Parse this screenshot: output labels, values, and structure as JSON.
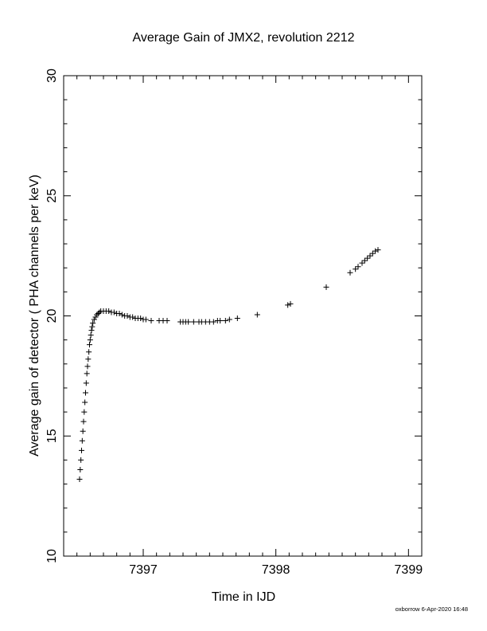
{
  "chart_data": {
    "type": "scatter",
    "title": "Average Gain of JMX2, revolution 2212",
    "xlabel": "Time in IJD",
    "ylabel": "Average gain of detector ( PHA channels per keV)",
    "xlim": [
      7396.4,
      7399.1
    ],
    "ylim": [
      10,
      30
    ],
    "xticks": [
      7397,
      7398,
      7399
    ],
    "yticks": [
      10,
      15,
      20,
      25,
      30
    ],
    "xtick_labels": [
      "7397",
      "7398",
      "7399"
    ],
    "ytick_labels": [
      "10",
      "15",
      "20",
      "25",
      "30"
    ],
    "marker": "plus",
    "grid": false,
    "x": [
      7396.52,
      7396.525,
      7396.53,
      7396.535,
      7396.54,
      7396.545,
      7396.55,
      7396.555,
      7396.56,
      7396.565,
      7396.57,
      7396.575,
      7396.58,
      7396.585,
      7396.59,
      7396.595,
      7396.6,
      7396.605,
      7396.61,
      7396.615,
      7396.62,
      7396.63,
      7396.64,
      7396.65,
      7396.66,
      7396.67,
      7396.68,
      7396.7,
      7396.72,
      7396.74,
      7396.76,
      7396.78,
      7396.8,
      7396.82,
      7396.84,
      7396.86,
      7396.88,
      7396.9,
      7396.92,
      7396.94,
      7396.96,
      7396.98,
      7397.0,
      7397.02,
      7397.06,
      7397.12,
      7397.15,
      7397.18,
      7397.28,
      7397.3,
      7397.32,
      7397.34,
      7397.38,
      7397.42,
      7397.44,
      7397.47,
      7397.5,
      7397.53,
      7397.56,
      7397.58,
      7397.62,
      7397.65,
      7397.71,
      7397.86,
      7398.09,
      7398.11,
      7398.38,
      7398.56,
      7398.6,
      7398.62,
      7398.65,
      7398.67,
      7398.69,
      7398.71,
      7398.73,
      7398.75,
      7398.77
    ],
    "y": [
      13.2,
      13.6,
      14.0,
      14.4,
      14.8,
      15.2,
      15.6,
      16.0,
      16.4,
      16.8,
      17.2,
      17.6,
      17.9,
      18.2,
      18.5,
      18.8,
      19.0,
      19.2,
      19.4,
      19.55,
      19.7,
      19.85,
      19.95,
      20.05,
      20.1,
      20.15,
      20.2,
      20.2,
      20.2,
      20.2,
      20.15,
      20.15,
      20.1,
      20.1,
      20.05,
      20.0,
      20.0,
      19.95,
      19.95,
      19.9,
      19.9,
      19.9,
      19.85,
      19.85,
      19.8,
      19.8,
      19.8,
      19.8,
      19.75,
      19.75,
      19.75,
      19.75,
      19.75,
      19.75,
      19.75,
      19.75,
      19.75,
      19.75,
      19.8,
      19.8,
      19.8,
      19.85,
      19.9,
      20.05,
      20.45,
      20.5,
      21.2,
      21.8,
      21.95,
      22.05,
      22.2,
      22.3,
      22.4,
      22.5,
      22.6,
      22.7,
      22.75
    ]
  },
  "footer": {
    "stamp": "oxborrow  6-Apr-2020 16:48"
  }
}
